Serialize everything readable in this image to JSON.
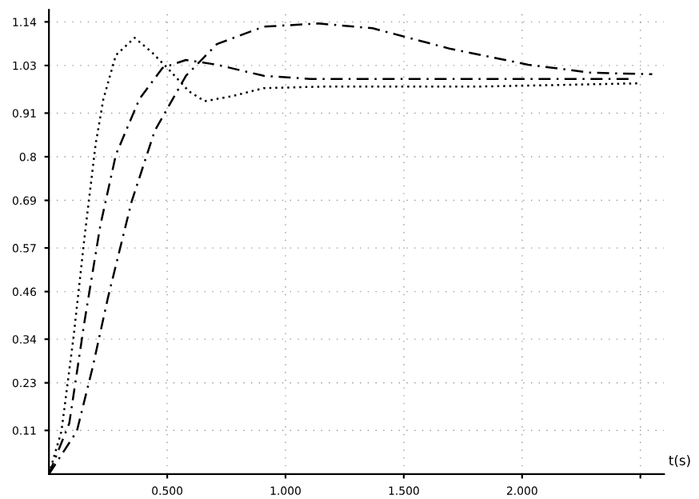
{
  "chart_data": {
    "type": "line",
    "xlabel": "t(s)",
    "xlim": [
      0,
      2.6
    ],
    "ylim": [
      0,
      1.17
    ],
    "xticks": [
      {
        "value": 0.5,
        "label": "0.500"
      },
      {
        "value": 1.0,
        "label": "1.000"
      },
      {
        "value": 1.5,
        "label": "1.500"
      },
      {
        "value": 2.0,
        "label": "2.000"
      },
      {
        "value": 2.5,
        "label": null
      }
    ],
    "yticks": [
      0.11,
      0.23,
      0.34,
      0.46,
      0.57,
      0.69,
      0.8,
      0.91,
      1.03,
      1.14
    ],
    "grid": true,
    "series": [
      {
        "color": "#000000",
        "line_style": "dotted",
        "x": [
          0,
          0.053,
          0.105,
          0.151,
          0.197,
          0.23,
          0.283,
          0.362,
          0.434,
          0.513,
          0.592,
          0.658,
          0.776,
          0.908,
          1.171,
          1.829,
          2.487
        ],
        "values": [
          0,
          0.108,
          0.35,
          0.6,
          0.83,
          0.945,
          1.056,
          1.1,
          1.064,
          1.016,
          0.965,
          0.94,
          0.953,
          0.973,
          0.977,
          0.977,
          0.985
        ]
      },
      {
        "color": "#000000",
        "line_style": "dashed",
        "x": [
          0,
          0.086,
          0.151,
          0.217,
          0.283,
          0.382,
          0.48,
          0.579,
          0.71,
          0.908,
          1.105,
          1.368,
          1.829,
          2.45
        ],
        "values": [
          0,
          0.128,
          0.387,
          0.626,
          0.805,
          0.945,
          1.024,
          1.044,
          1.032,
          1.004,
          0.996,
          0.996,
          0.996,
          0.996
        ]
      },
      {
        "color": "#000000",
        "line_style": "dashed",
        "x": [
          0,
          0.118,
          0.184,
          0.25,
          0.349,
          0.447,
          0.579,
          0.71,
          0.908,
          1.138,
          1.368,
          1.697,
          2.026,
          2.289,
          2.55
        ],
        "values": [
          0,
          0.108,
          0.267,
          0.446,
          0.686,
          0.865,
          1.004,
          1.084,
          1.128,
          1.136,
          1.124,
          1.072,
          1.032,
          1.012,
          1.008
        ]
      }
    ]
  }
}
